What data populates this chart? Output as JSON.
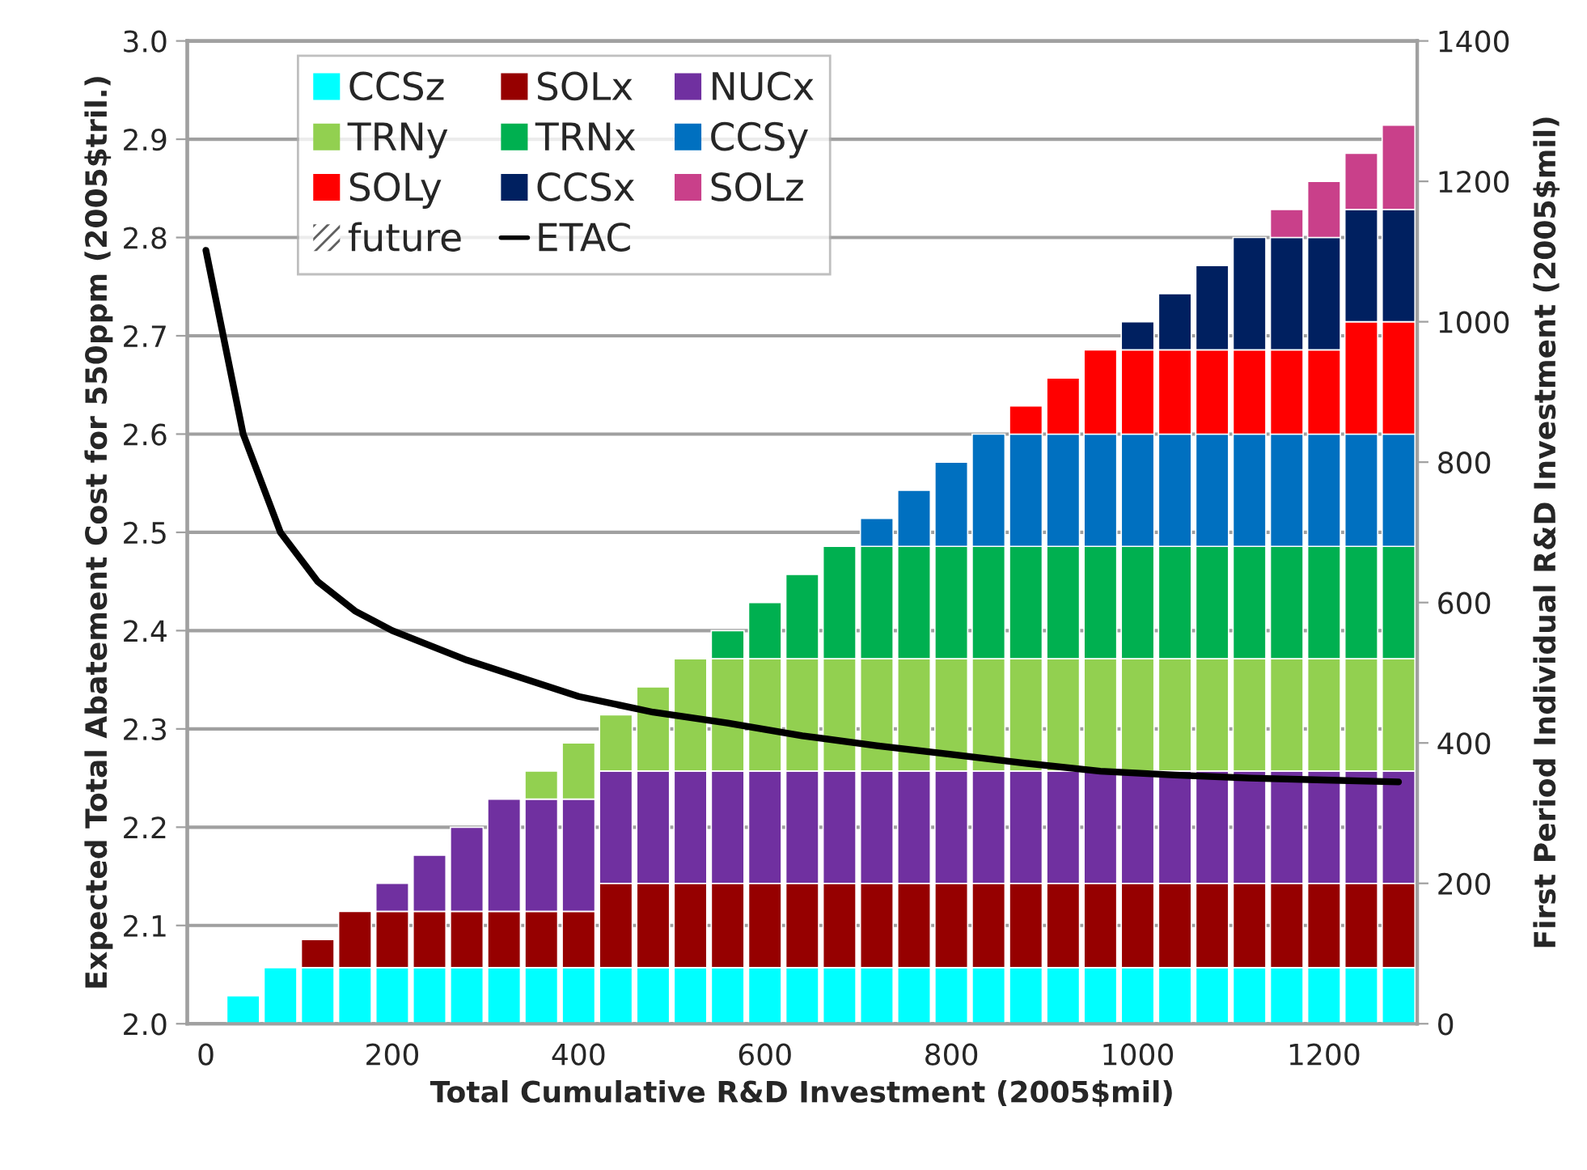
{
  "chart_data": {
    "type": "bar",
    "stacked": true,
    "xlabel": "Total Cumulative R&D Investment (2005$mil)",
    "ylabel": "Expected Total Abatement Cost for 550ppm (2005$tril.)",
    "y2label": "First Period Individual R&D Investment (2005$mil)",
    "x": [
      40,
      80,
      120,
      160,
      200,
      240,
      280,
      320,
      360,
      400,
      440,
      480,
      520,
      560,
      600,
      640,
      680,
      720,
      760,
      800,
      840,
      880,
      920,
      960,
      1000,
      1040,
      1080,
      1120,
      1160,
      1200,
      1240,
      1280
    ],
    "xlim": [
      -20,
      1300
    ],
    "xticks": [
      0,
      200,
      400,
      600,
      800,
      1000,
      1200
    ],
    "ylim": [
      2.0,
      3.0
    ],
    "yticks": [
      {
        "value": 2,
        "label": "2.0"
      },
      2.1,
      2.2,
      2.3,
      2.4,
      2.5,
      2.6,
      2.7,
      2.8,
      2.9,
      {
        "value": 3,
        "label": "3.0"
      }
    ],
    "y2lim": [
      0,
      1400
    ],
    "y2ticks": [
      0,
      200,
      400,
      600,
      800,
      1000,
      1200,
      1400
    ],
    "grid": "y",
    "legend": "top left",
    "series": [
      {
        "name": "CCSz",
        "color": "#00ffff",
        "axis": "y2",
        "values": [
          40,
          80,
          80,
          80,
          80,
          80,
          80,
          80,
          80,
          80,
          80,
          80,
          80,
          80,
          80,
          80,
          80,
          80,
          80,
          80,
          80,
          80,
          80,
          80,
          80,
          80,
          80,
          80,
          80,
          80,
          80,
          80
        ]
      },
      {
        "name": "SOLx",
        "color": "#960000",
        "axis": "y2",
        "values": [
          null,
          null,
          40,
          80,
          80,
          80,
          80,
          80,
          80,
          80,
          120,
          120,
          120,
          120,
          120,
          120,
          120,
          120,
          120,
          120,
          120,
          120,
          120,
          120,
          120,
          120,
          120,
          120,
          120,
          120,
          120,
          120
        ]
      },
      {
        "name": "NUCx",
        "color": "#7030a0",
        "axis": "y2",
        "values": [
          null,
          null,
          null,
          null,
          40,
          80,
          120,
          160,
          160,
          160,
          160,
          160,
          160,
          160,
          160,
          160,
          160,
          160,
          160,
          160,
          160,
          160,
          160,
          160,
          160,
          160,
          160,
          160,
          160,
          160,
          160,
          160
        ]
      },
      {
        "name": "TRNy",
        "color": "#92d050",
        "axis": "y2",
        "values": [
          null,
          null,
          null,
          null,
          null,
          null,
          null,
          null,
          40,
          80,
          80,
          120,
          160,
          160,
          160,
          160,
          160,
          160,
          160,
          160,
          160,
          160,
          160,
          160,
          160,
          160,
          160,
          160,
          160,
          160,
          160,
          160
        ]
      },
      {
        "name": "TRNx",
        "color": "#00b050",
        "axis": "y2",
        "values": [
          null,
          null,
          null,
          null,
          null,
          null,
          null,
          null,
          null,
          null,
          null,
          null,
          null,
          40,
          80,
          120,
          160,
          160,
          160,
          160,
          160,
          160,
          160,
          160,
          160,
          160,
          160,
          160,
          160,
          160,
          160,
          160
        ]
      },
      {
        "name": "CCSy",
        "color": "#0070c0",
        "axis": "y2",
        "values": [
          null,
          null,
          null,
          null,
          null,
          null,
          null,
          null,
          null,
          null,
          null,
          null,
          null,
          null,
          null,
          null,
          null,
          40,
          80,
          120,
          160,
          160,
          160,
          160,
          160,
          160,
          160,
          160,
          160,
          160,
          160,
          160
        ]
      },
      {
        "name": "SOLy",
        "color": "#ff0000",
        "axis": "y2",
        "values": [
          null,
          null,
          null,
          null,
          null,
          null,
          null,
          null,
          null,
          null,
          null,
          null,
          null,
          null,
          null,
          null,
          null,
          null,
          null,
          null,
          null,
          40,
          80,
          120,
          120,
          120,
          120,
          120,
          120,
          120,
          160,
          160
        ]
      },
      {
        "name": "CCSx",
        "color": "#002060",
        "axis": "y2",
        "values": [
          null,
          null,
          null,
          null,
          null,
          null,
          null,
          null,
          null,
          null,
          null,
          null,
          null,
          null,
          null,
          null,
          null,
          null,
          null,
          null,
          null,
          null,
          null,
          null,
          40,
          80,
          120,
          160,
          160,
          160,
          160,
          160
        ]
      },
      {
        "name": "SOLz",
        "color": "#c9408a",
        "axis": "y2",
        "values": [
          null,
          null,
          null,
          null,
          null,
          null,
          null,
          null,
          null,
          null,
          null,
          null,
          null,
          null,
          null,
          null,
          null,
          null,
          null,
          null,
          null,
          null,
          null,
          null,
          null,
          null,
          null,
          null,
          40,
          80,
          80,
          120
        ]
      },
      {
        "name": "future",
        "color": "#606060",
        "axis": "y2",
        "values": [
          null,
          null,
          null,
          null,
          null,
          null,
          null,
          null,
          null,
          null,
          null,
          null,
          null,
          null,
          null,
          null,
          null,
          null,
          null,
          null,
          null,
          null,
          null,
          null,
          null,
          null,
          null,
          null,
          null,
          null,
          null,
          null
        ]
      },
      {
        "name": "ETAC",
        "type": "line",
        "color": "#000000",
        "axis": "y",
        "line_style": "solid",
        "marker": "none",
        "x": [
          0,
          40,
          80,
          120,
          160,
          200,
          280,
          400,
          480,
          560,
          640,
          720,
          800,
          880,
          960,
          1040,
          1120,
          1200,
          1280
        ],
        "values": [
          2.787,
          2.6,
          2.5,
          2.45,
          2.42,
          2.4,
          2.37,
          2.333,
          2.317,
          2.306,
          2.293,
          2.283,
          2.274,
          2.265,
          2.257,
          2.253,
          2.25,
          2.248,
          2.246
        ]
      }
    ]
  }
}
